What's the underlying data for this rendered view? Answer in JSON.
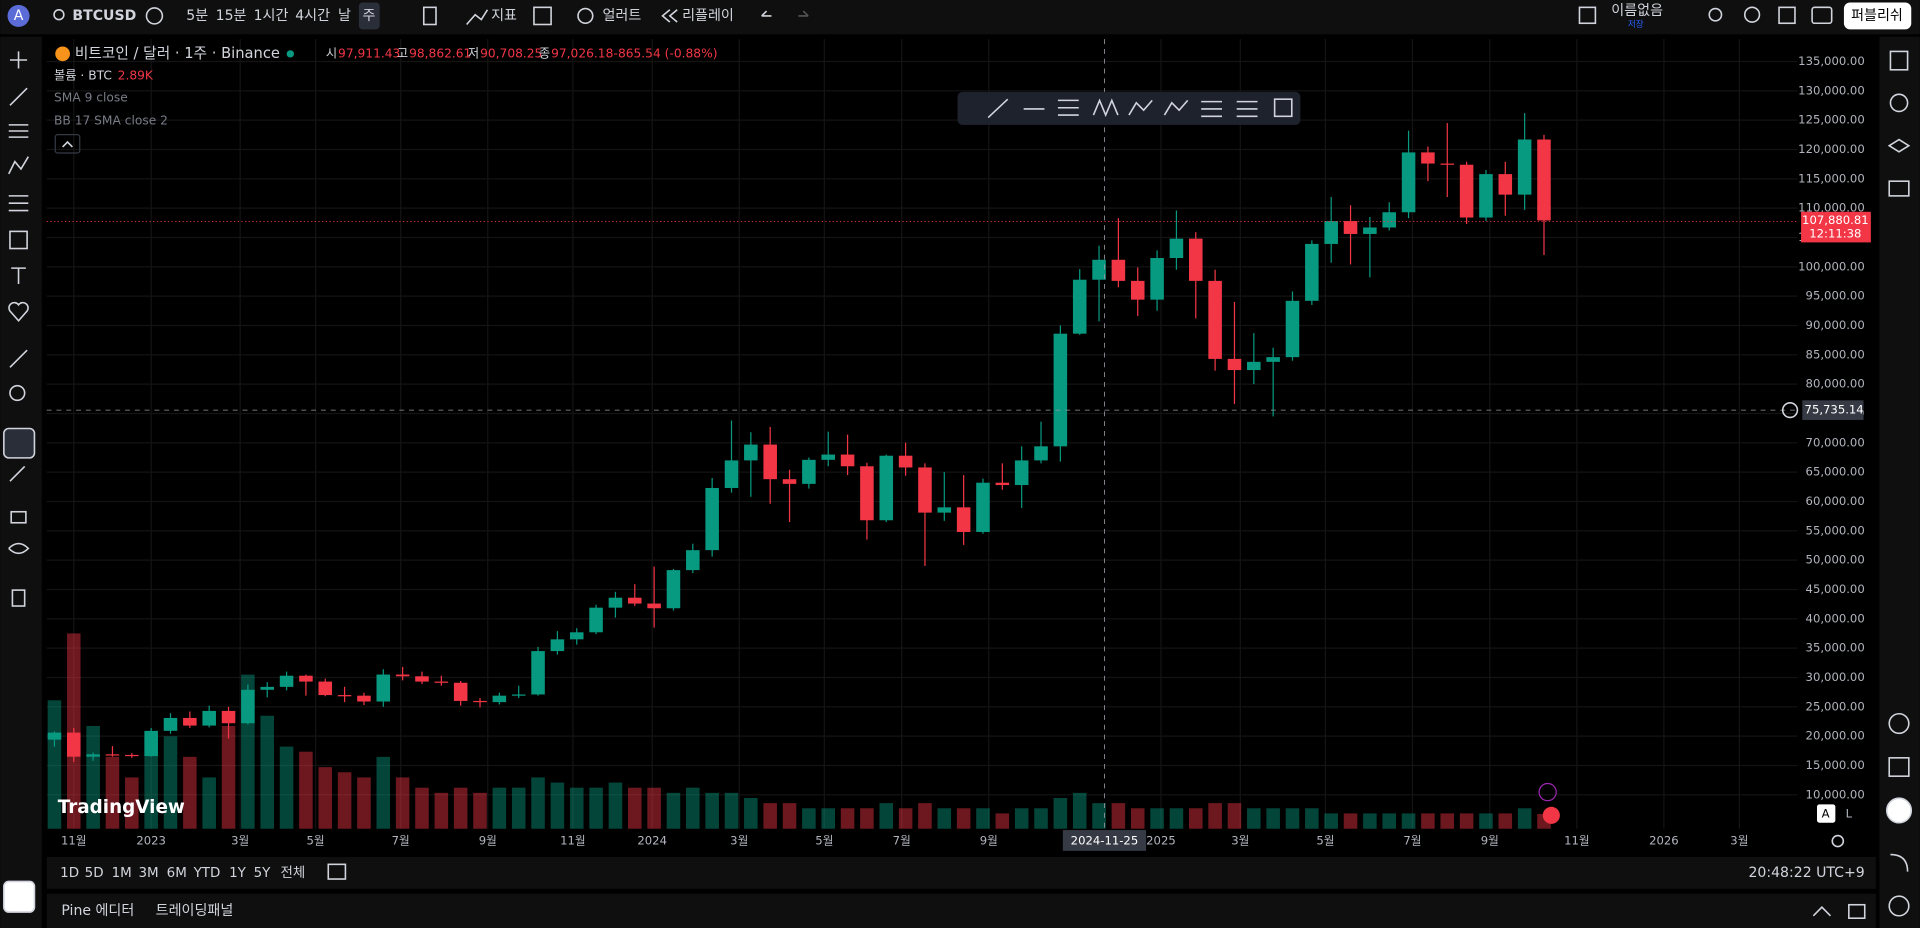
{
  "toolbar": {
    "avatar": "A",
    "symbol": "BTCUSD",
    "intervals": [
      "5분",
      "15분",
      "1시간",
      "4시간",
      "날",
      "주"
    ],
    "indicators": "지표",
    "alert": "얼러트",
    "replay": "리플레이",
    "layout_name": "이름없음",
    "layout_status": "저장",
    "publish": "퍼블리쉬"
  },
  "legend": {
    "title": "비트코인 / 달러 · 1주 · Binance",
    "open_label": "시",
    "open": "97,911.43",
    "high_label": "고",
    "high": "98,862.61",
    "low_label": "저",
    "low": "90,708.25",
    "close_label": "종",
    "close": "97,026.18",
    "change": "-865.54 (-0.88%)",
    "volume_label": "볼륨 · BTC",
    "volume": "2.89K",
    "sma": "SMA 9 close",
    "bb": "BB 17 SMA close 2"
  },
  "watermark": "TradingView",
  "price_label": "107,880.81",
  "countdown": "12:11:38",
  "crosshair_price": "75,735.14",
  "crosshair_date": "2024-11-25",
  "scale_buttons": [
    "A",
    "L"
  ],
  "bottom": {
    "ranges": [
      "1D",
      "5D",
      "1M",
      "3M",
      "6M",
      "YTD",
      "1Y",
      "5Y",
      "전체"
    ],
    "clock": "20:48:22 UTC+9",
    "tabs": [
      "Pine 에디터",
      "트레이딩패널"
    ]
  },
  "chart_data": {
    "type": "candlestick",
    "up_color": "#089981",
    "down_color": "#f23645",
    "grid": true,
    "open": [
      19400,
      20600,
      16500,
      16900,
      16800,
      16600,
      20900,
      23100,
      21800,
      24300,
      22200,
      27900,
      28400,
      30300,
      29300,
      27000,
      26900,
      25900,
      30500,
      30200,
      29300,
      29100,
      26000,
      25800,
      26900,
      27100,
      34500,
      36500,
      37700,
      41900,
      43600,
      42600,
      41800,
      48300,
      51700,
      62300,
      67000,
      69700,
      63800,
      63000,
      67100,
      68000,
      66000,
      56800,
      67800,
      65800,
      58100,
      59000,
      54800,
      63200,
      62800,
      67000,
      69400,
      88600,
      97800,
      101200,
      97600,
      94400,
      101500,
      104800,
      97600,
      84300,
      82400,
      83800,
      84600,
      94200,
      103900,
      107800,
      105600,
      106700,
      109300,
      119500,
      117600,
      117400,
      108400,
      115800,
      112300,
      121700
    ],
    "high": [
      20800,
      21400,
      17200,
      18300,
      17100,
      21400,
      23900,
      24200,
      25200,
      25000,
      28800,
      29200,
      31000,
      30500,
      29800,
      28400,
      27400,
      31400,
      31800,
      31000,
      30300,
      29400,
      26500,
      27400,
      28600,
      35200,
      37900,
      38400,
      42400,
      44600,
      45900,
      48900,
      48500,
      52800,
      64000,
      73800,
      71800,
      72700,
      65400,
      67500,
      71900,
      71400,
      66600,
      68000,
      70000,
      66500,
      65000,
      64500,
      63900,
      66500,
      69400,
      73600,
      90000,
      99600,
      103600,
      108300,
      99900,
      102800,
      109600,
      105900,
      99500,
      94000,
      88700,
      86200,
      95800,
      104500,
      111900,
      110500,
      108500,
      111000,
      123200,
      120500,
      124500,
      117900,
      116500,
      117900,
      126200,
      122500
    ],
    "low": [
      18200,
      15600,
      15800,
      16500,
      16300,
      16500,
      20400,
      21400,
      21500,
      19600,
      22000,
      26600,
      27800,
      26900,
      26800,
      25800,
      25300,
      25000,
      29500,
      28900,
      28600,
      25200,
      24900,
      25400,
      26500,
      26900,
      33900,
      35600,
      37400,
      40200,
      42200,
      38500,
      41400,
      47800,
      50600,
      61500,
      60800,
      59600,
      56500,
      62200,
      66000,
      64500,
      53500,
      56500,
      64400,
      49000,
      56700,
      52600,
      54500,
      62000,
      58900,
      66500,
      66800,
      88400,
      90700,
      96500,
      91600,
      92500,
      99500,
      91200,
      82300,
      76600,
      80000,
      74500,
      84000,
      93500,
      100700,
      100400,
      98200,
      106200,
      108300,
      114600,
      111900,
      107300,
      107800,
      108700,
      109700,
      102000
    ],
    "close": [
      20600,
      16500,
      16900,
      16800,
      16600,
      20900,
      23100,
      21800,
      24300,
      22200,
      27900,
      28400,
      30300,
      29300,
      27000,
      26900,
      25900,
      30500,
      30200,
      29300,
      29100,
      26000,
      25800,
      26900,
      27100,
      34500,
      36500,
      37700,
      41900,
      43600,
      42600,
      41800,
      48300,
      51700,
      62300,
      67000,
      69700,
      63800,
      63000,
      67100,
      68000,
      66000,
      56800,
      67800,
      65800,
      58100,
      59000,
      54800,
      63200,
      62800,
      67000,
      69400,
      88600,
      97800,
      101200,
      97600,
      94400,
      101500,
      104800,
      97600,
      84300,
      82400,
      83800,
      84600,
      94200,
      103900,
      107800,
      105600,
      106700,
      109300,
      119500,
      117600,
      117400,
      108400,
      115800,
      112300,
      121700,
      107900
    ],
    "volume": [
      25,
      38,
      20,
      14,
      10,
      18,
      18,
      14,
      10,
      20,
      30,
      22,
      16,
      15,
      12,
      11,
      10,
      14,
      10,
      8,
      7,
      8,
      7,
      8,
      8,
      10,
      9,
      8,
      8,
      9,
      8,
      8,
      7,
      8,
      7,
      7,
      6,
      5,
      5,
      4,
      4,
      4,
      4,
      5,
      4,
      5,
      4,
      4,
      4,
      3,
      4,
      4,
      6,
      7,
      5,
      5,
      4,
      4,
      4,
      4,
      5,
      5,
      4,
      4,
      4,
      4,
      3,
      3,
      3,
      3,
      3,
      3,
      3,
      3,
      3,
      3,
      4,
      2.89
    ],
    "xlim": [
      -0.4,
      90.1
    ],
    "xticks": [
      {
        "value": 1,
        "label": "11월"
      },
      {
        "value": 5,
        "label": "2023"
      },
      {
        "value": 9.6,
        "label": "3월"
      },
      {
        "value": 13.5,
        "label": "5월"
      },
      {
        "value": 17.9,
        "label": "7월"
      },
      {
        "value": 22.4,
        "label": "9월"
      },
      {
        "value": 26.8,
        "label": "11월"
      },
      {
        "value": 30.9,
        "label": "2024"
      },
      {
        "value": 35.4,
        "label": "3월"
      },
      {
        "value": 39.8,
        "label": "5월"
      },
      {
        "value": 43.8,
        "label": "7월"
      },
      {
        "value": 48.3,
        "label": "9월"
      },
      {
        "value": 57.2,
        "label": "2025"
      },
      {
        "value": 61.3,
        "label": "3월"
      },
      {
        "value": 65.7,
        "label": "5월"
      },
      {
        "value": 70.2,
        "label": "7월"
      },
      {
        "value": 74.2,
        "label": "9월"
      },
      {
        "value": 78.7,
        "label": "11월"
      },
      {
        "value": 83.2,
        "label": "2026"
      },
      {
        "value": 87.1,
        "label": "3월"
      }
    ],
    "ylim": [
      4200,
      138800
    ],
    "yticks": [
      {
        "value": 10000,
        "label": "10,000.00"
      },
      {
        "value": 15000,
        "label": "15,000.00"
      },
      {
        "value": 20000,
        "label": "20,000.00"
      },
      {
        "value": 25000,
        "label": "25,000.00"
      },
      {
        "value": 30000,
        "label": "30,000.00"
      },
      {
        "value": 35000,
        "label": "35,000.00"
      },
      {
        "value": 40000,
        "label": "40,000.00"
      },
      {
        "value": 45000,
        "label": "45,000.00"
      },
      {
        "value": 50000,
        "label": "50,000.00"
      },
      {
        "value": 55000,
        "label": "55,000.00"
      },
      {
        "value": 60000,
        "label": "60,000.00"
      },
      {
        "value": 65000,
        "label": "65,000.00"
      },
      {
        "value": 70000,
        "label": "70,000.00"
      },
      {
        "value": 75000,
        "label": "75,000.00"
      },
      {
        "value": 80000,
        "label": "80,000.00"
      },
      {
        "value": 85000,
        "label": "85,000.00"
      },
      {
        "value": 90000,
        "label": "90,000.00"
      },
      {
        "value": 95000,
        "label": "95,000.00"
      },
      {
        "value": 100000,
        "label": "100,000.00"
      },
      {
        "value": 105000,
        "label": "105,000.00"
      },
      {
        "value": 110000,
        "label": "110,000.00"
      },
      {
        "value": 115000,
        "label": "115,000.00"
      },
      {
        "value": 120000,
        "label": "120,000.00"
      },
      {
        "value": 125000,
        "label": "125,000.00"
      },
      {
        "value": 130000,
        "label": "130,000.00"
      },
      {
        "value": 135000,
        "label": "135,000.00"
      }
    ]
  }
}
